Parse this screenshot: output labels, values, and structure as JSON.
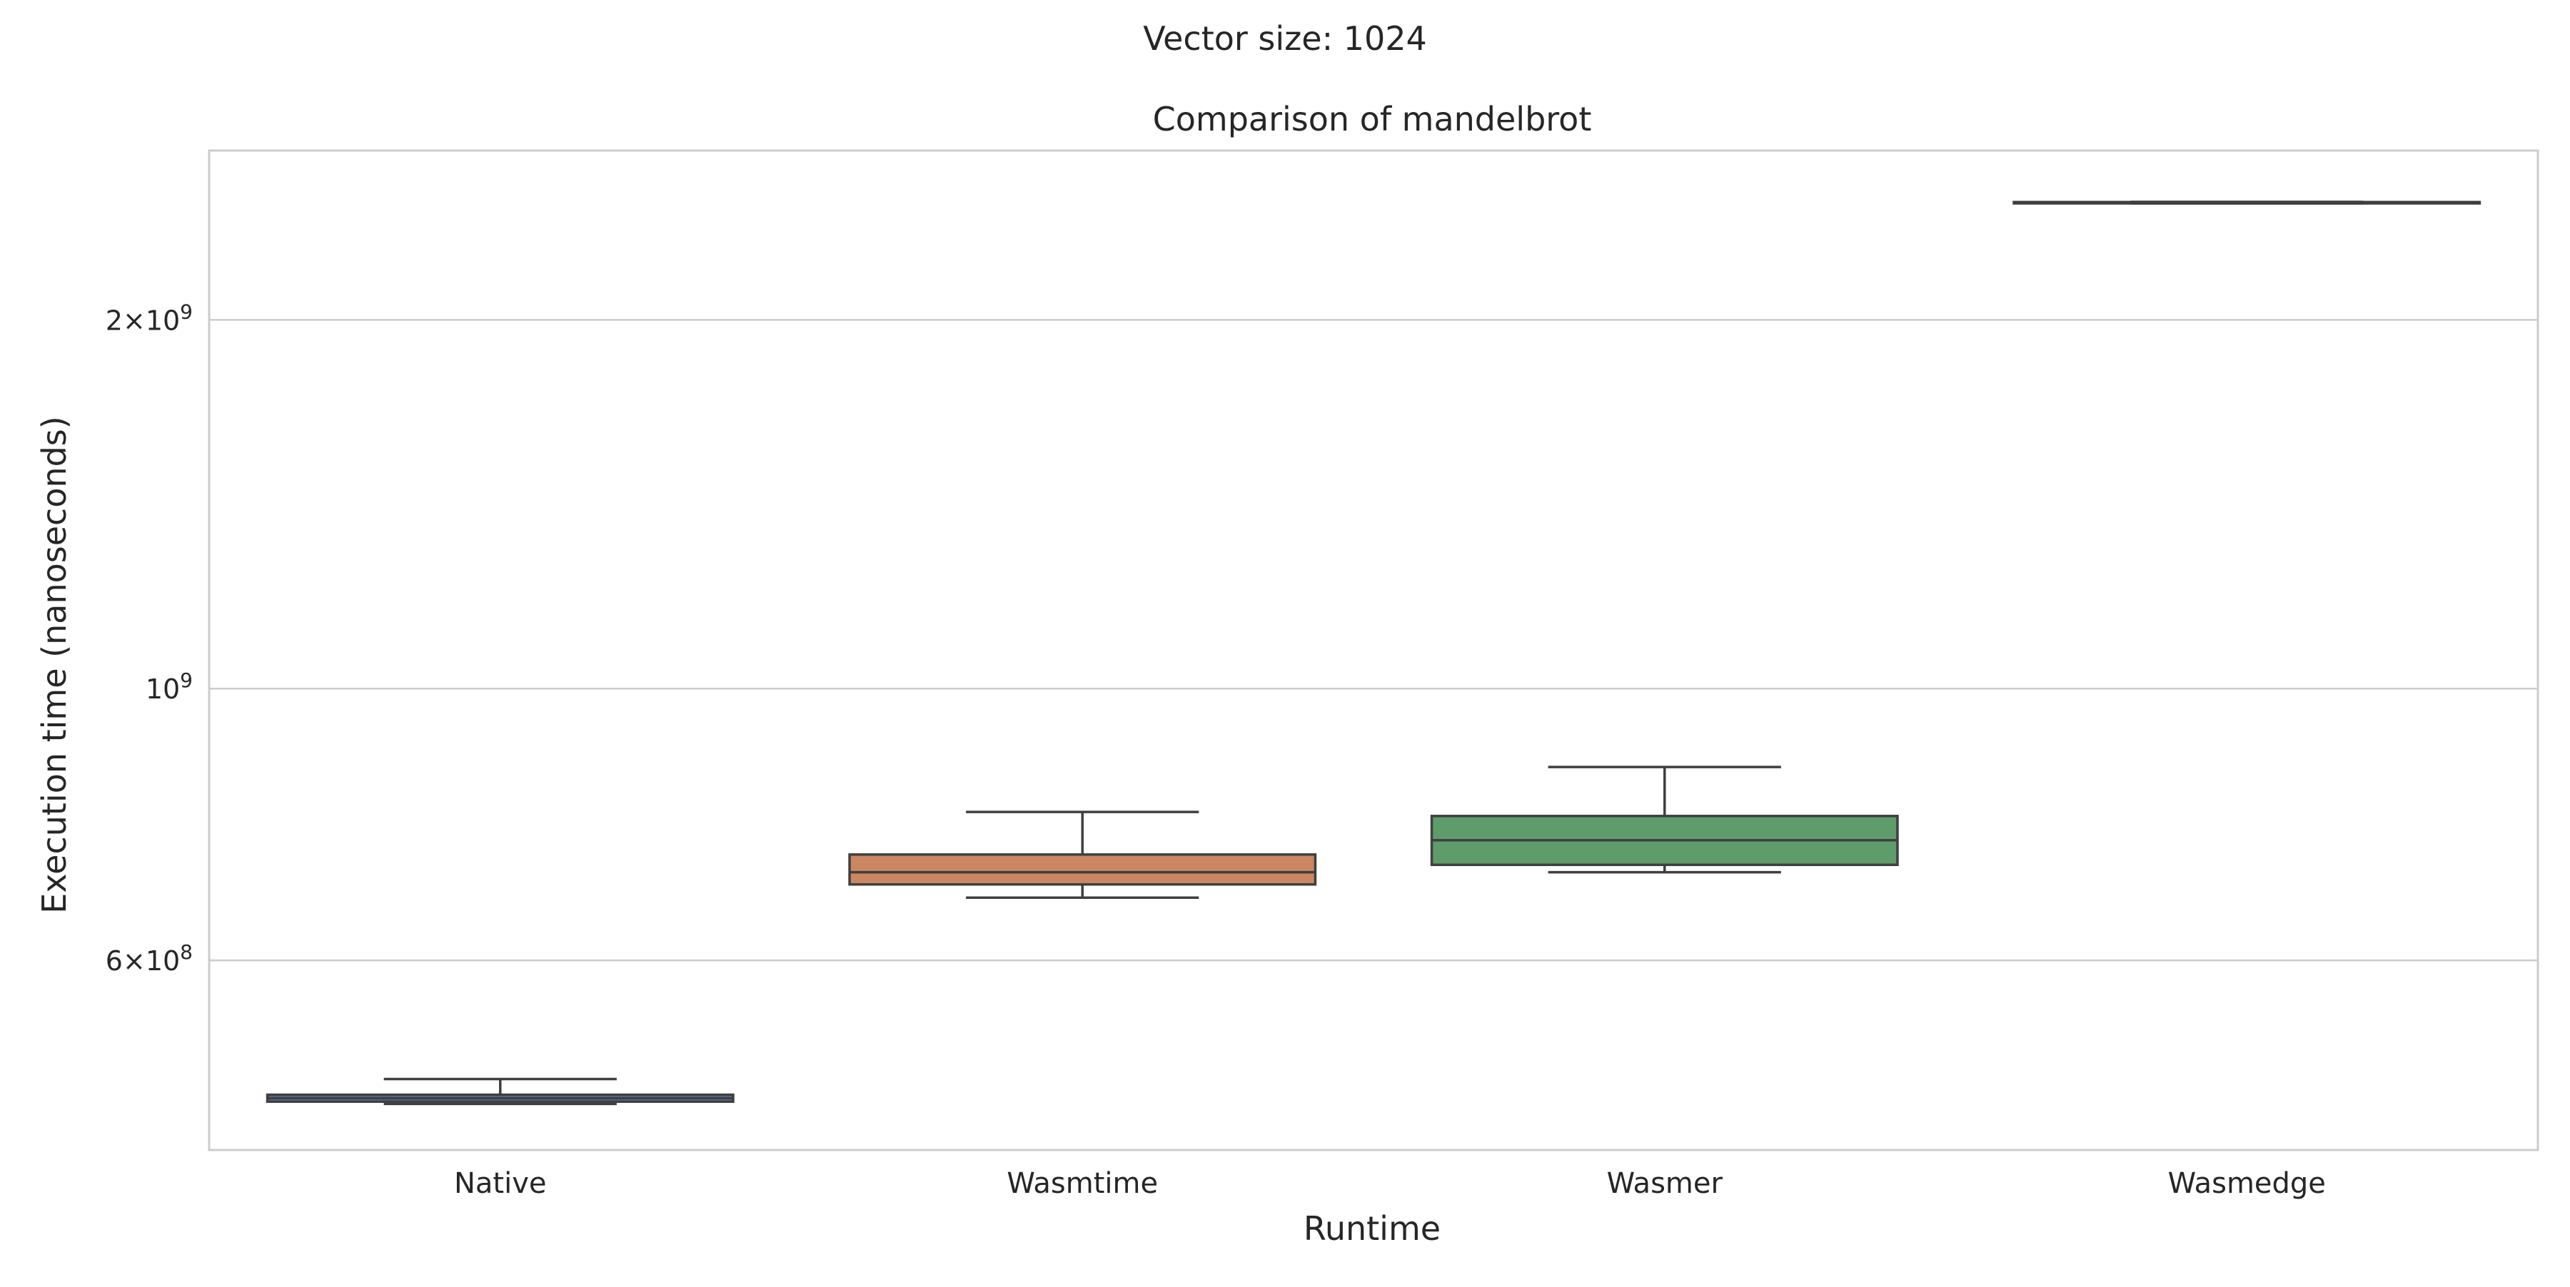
{
  "figure": {
    "suptitle": "Vector size: 1024"
  },
  "chart_data": {
    "type": "box",
    "title": "Comparison of mandelbrot",
    "xlabel": "Runtime",
    "ylabel": "Execution time (nanoseconds)",
    "yscale": "log",
    "ylim": [
      420000000,
      2750000000
    ],
    "grid": "horizontal",
    "yticks": [
      {
        "value": 600000000,
        "mantissa": "6",
        "exponent": "8"
      },
      {
        "value": 1000000000,
        "mantissa": "",
        "exponent": "9"
      },
      {
        "value": 2000000000,
        "mantissa": "2",
        "exponent": "9"
      }
    ],
    "categories": [
      "Native",
      "Wasmtime",
      "Wasmer",
      "Wasmedge"
    ],
    "boxes": [
      {
        "name": "Native",
        "color": "#4c72b0",
        "whisker_low": 458000000,
        "q1": 460000000,
        "median": 463000000,
        "q3": 466000000,
        "whisker_high": 480000000
      },
      {
        "name": "Wasmtime",
        "color": "#dd8452",
        "whisker_low": 675000000,
        "q1": 692000000,
        "median": 708000000,
        "q3": 732000000,
        "whisker_high": 793000000
      },
      {
        "name": "Wasmer",
        "color": "#55a868",
        "whisker_low": 708000000,
        "q1": 718000000,
        "median": 752000000,
        "q3": 787000000,
        "whisker_high": 863000000
      },
      {
        "name": "Wasmedge",
        "color": "#c44e52",
        "whisker_low": 2490000000,
        "q1": 2490000000,
        "median": 2493000000,
        "q3": 2496000000,
        "whisker_high": 2497000000
      }
    ]
  }
}
